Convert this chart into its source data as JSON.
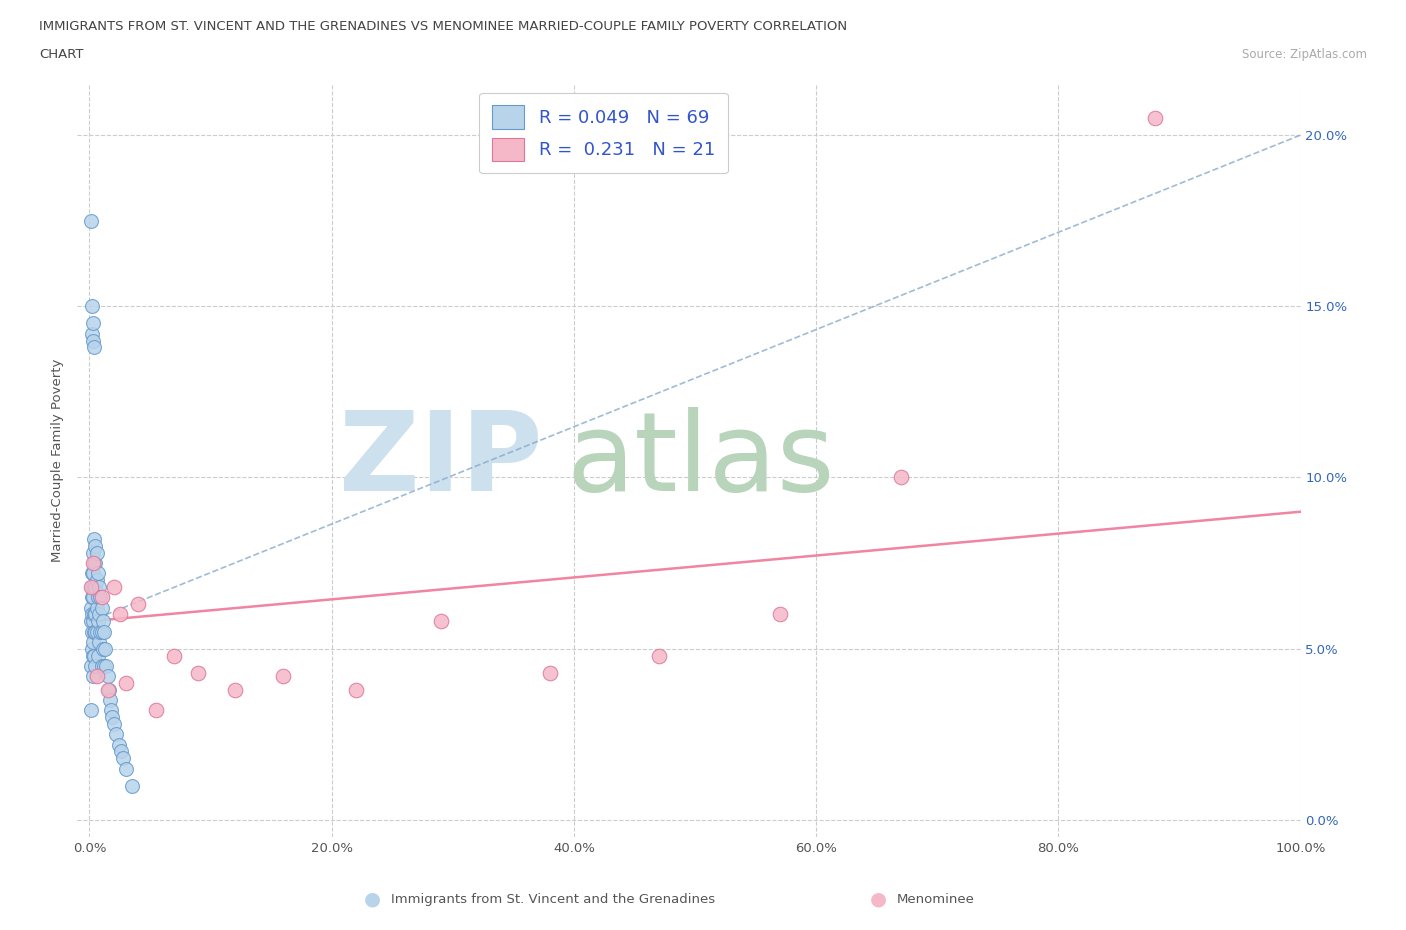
{
  "title_line1": "IMMIGRANTS FROM ST. VINCENT AND THE GRENADINES VS MENOMINEE MARRIED-COUPLE FAMILY POVERTY CORRELATION",
  "title_line2": "CHART",
  "source_text": "Source: ZipAtlas.com",
  "ylabel": "Married-Couple Family Poverty",
  "xlabel_blue": "Immigrants from St. Vincent and the Grenadines",
  "xlabel_pink": "Menominee",
  "xlim": [
    -0.01,
    1.0
  ],
  "ylim": [
    -0.005,
    0.215
  ],
  "xticks": [
    0.0,
    0.2,
    0.4,
    0.6,
    0.8,
    1.0
  ],
  "xtick_labels": [
    "0.0%",
    "20.0%",
    "40.0%",
    "60.0%",
    "80.0%",
    "100.0%"
  ],
  "yticks": [
    0.0,
    0.05,
    0.1,
    0.15,
    0.2
  ],
  "ytick_labels": [
    "0.0%",
    "5.0%",
    "10.0%",
    "15.0%",
    "20.0%"
  ],
  "blue_R": "0.049",
  "blue_N": "69",
  "pink_R": "0.231",
  "pink_N": "21",
  "blue_fill": "#b8d4ea",
  "pink_fill": "#f5b8c8",
  "blue_edge": "#6699cc",
  "pink_edge": "#dd7799",
  "blue_line_color": "#88aacc",
  "pink_line_color": "#ee7799",
  "watermark_zip_color": "#cce0ee",
  "watermark_atlas_color": "#b8d4bb",
  "blue_scatter_x": [
    0.001,
    0.001,
    0.001,
    0.001,
    0.001,
    0.002,
    0.002,
    0.002,
    0.002,
    0.002,
    0.002,
    0.002,
    0.002,
    0.003,
    0.003,
    0.003,
    0.003,
    0.003,
    0.003,
    0.003,
    0.003,
    0.003,
    0.004,
    0.004,
    0.004,
    0.004,
    0.004,
    0.004,
    0.004,
    0.005,
    0.005,
    0.005,
    0.005,
    0.005,
    0.005,
    0.006,
    0.006,
    0.006,
    0.006,
    0.007,
    0.007,
    0.007,
    0.007,
    0.008,
    0.008,
    0.008,
    0.009,
    0.009,
    0.01,
    0.01,
    0.01,
    0.011,
    0.011,
    0.012,
    0.012,
    0.013,
    0.014,
    0.015,
    0.016,
    0.017,
    0.018,
    0.019,
    0.02,
    0.022,
    0.024,
    0.026,
    0.028,
    0.03,
    0.035
  ],
  "blue_scatter_y": [
    0.175,
    0.062,
    0.058,
    0.045,
    0.032,
    0.15,
    0.142,
    0.072,
    0.068,
    0.065,
    0.06,
    0.055,
    0.05,
    0.145,
    0.14,
    0.078,
    0.072,
    0.065,
    0.058,
    0.052,
    0.048,
    0.042,
    0.138,
    0.082,
    0.075,
    0.068,
    0.06,
    0.055,
    0.048,
    0.08,
    0.075,
    0.068,
    0.06,
    0.055,
    0.045,
    0.078,
    0.07,
    0.062,
    0.055,
    0.072,
    0.065,
    0.058,
    0.048,
    0.068,
    0.06,
    0.052,
    0.065,
    0.055,
    0.062,
    0.055,
    0.045,
    0.058,
    0.05,
    0.055,
    0.045,
    0.05,
    0.045,
    0.042,
    0.038,
    0.035,
    0.032,
    0.03,
    0.028,
    0.025,
    0.022,
    0.02,
    0.018,
    0.015,
    0.01
  ],
  "pink_scatter_x": [
    0.001,
    0.003,
    0.006,
    0.01,
    0.015,
    0.02,
    0.025,
    0.03,
    0.04,
    0.055,
    0.07,
    0.09,
    0.12,
    0.16,
    0.22,
    0.29,
    0.38,
    0.47,
    0.57,
    0.67,
    0.88
  ],
  "pink_scatter_y": [
    0.068,
    0.075,
    0.042,
    0.065,
    0.038,
    0.068,
    0.06,
    0.04,
    0.063,
    0.032,
    0.048,
    0.043,
    0.038,
    0.042,
    0.038,
    0.058,
    0.043,
    0.048,
    0.06,
    0.1,
    0.205
  ],
  "blue_trend_x": [
    0.0,
    1.0
  ],
  "blue_trend_y": [
    0.058,
    0.2
  ],
  "pink_trend_x": [
    0.0,
    1.0
  ],
  "pink_trend_y": [
    0.058,
    0.09
  ]
}
